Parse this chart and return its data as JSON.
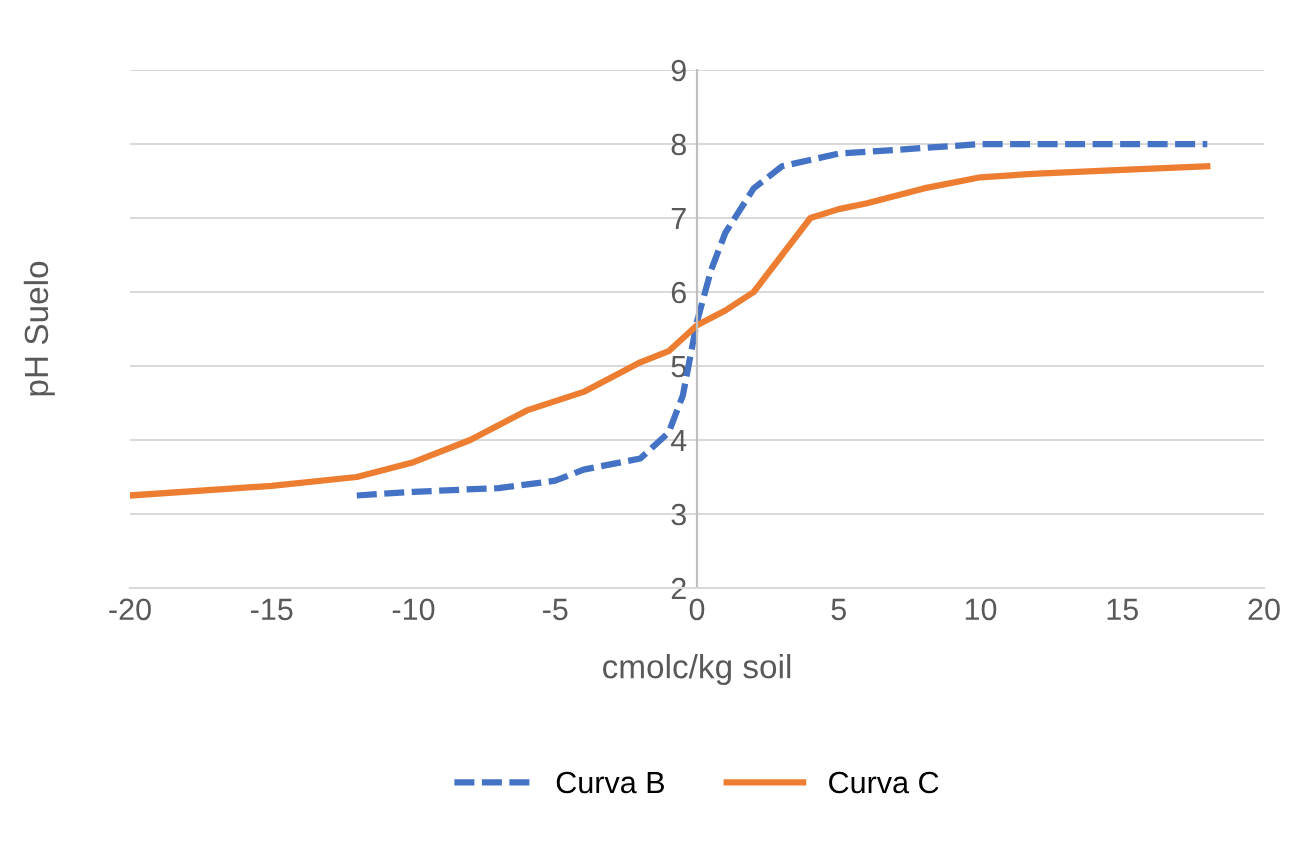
{
  "chart_data": {
    "type": "line",
    "xlabel": "cmolc/kg soil",
    "ylabel": "pH Suelo",
    "xlim": [
      -20,
      20
    ],
    "xticks": [
      -20,
      -15,
      -10,
      -5,
      0,
      5,
      10,
      15,
      20
    ],
    "ylim": [
      2,
      9
    ],
    "yticks": [
      2,
      3,
      4,
      5,
      6,
      7,
      8,
      9
    ],
    "grid": "y",
    "legend": "bottom",
    "marker": "none",
    "series": [
      {
        "name": "Curva B",
        "color": "#4472c4",
        "line_style": "dashed",
        "x": [
          -12,
          -10,
          -7,
          -5,
          -4,
          -2,
          -1,
          -0.5,
          0,
          0.5,
          1,
          2,
          3,
          5,
          7,
          10,
          15,
          18
        ],
        "values": [
          3.25,
          3.3,
          3.35,
          3.45,
          3.6,
          3.75,
          4.1,
          4.6,
          5.6,
          6.3,
          6.8,
          7.4,
          7.7,
          7.87,
          7.92,
          8.0,
          8.0,
          8.0
        ]
      },
      {
        "name": "Curva C",
        "color": "#ed7d31",
        "line_style": "solid",
        "x": [
          -20,
          -15,
          -12,
          -10,
          -8,
          -6,
          -4,
          -2,
          -1,
          0,
          1,
          2,
          3,
          4,
          5,
          6,
          8,
          10,
          12,
          15,
          18
        ],
        "values": [
          3.25,
          3.38,
          3.5,
          3.7,
          4.0,
          4.4,
          4.65,
          5.05,
          5.2,
          5.55,
          5.75,
          6.0,
          6.5,
          7.0,
          7.12,
          7.2,
          7.4,
          7.55,
          7.6,
          7.65,
          7.7
        ]
      }
    ]
  }
}
